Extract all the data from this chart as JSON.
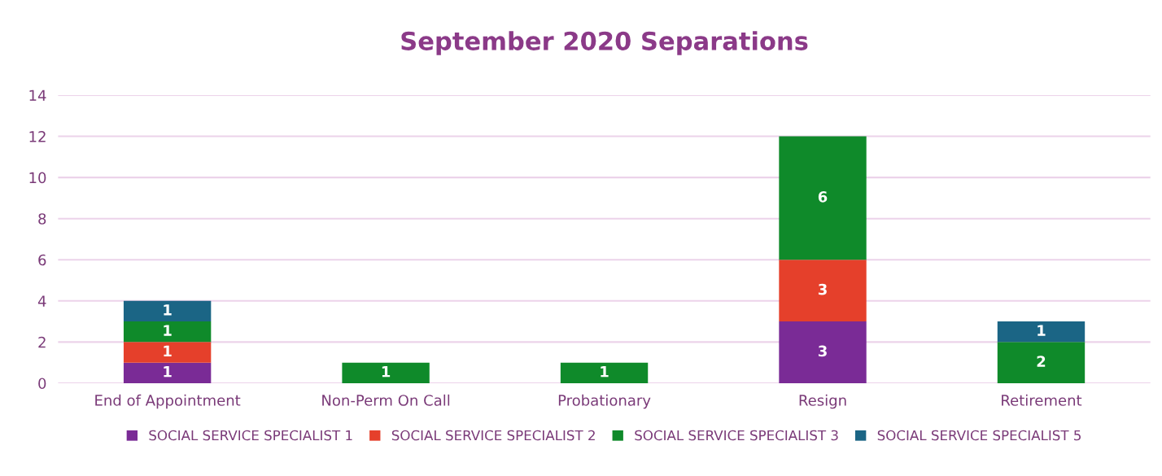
{
  "chart_data": {
    "type": "bar",
    "title": "September 2020 Separations",
    "stacked": true,
    "categories": [
      "End of Appointment",
      "Non-Perm On Call",
      "Probationary",
      "Resign",
      "Retirement"
    ],
    "series": [
      {
        "name": "SOCIAL SERVICE SPECIALIST 1",
        "color": "#7a2b96",
        "values": [
          1,
          null,
          null,
          3,
          null
        ]
      },
      {
        "name": "SOCIAL SERVICE SPECIALIST 2",
        "color": "#e5402b",
        "values": [
          1,
          null,
          null,
          3,
          null
        ]
      },
      {
        "name": "SOCIAL SERVICE SPECIALIST 3",
        "color": "#0f8a2a",
        "values": [
          1,
          1,
          1,
          6,
          2
        ]
      },
      {
        "name": "SOCIAL SERVICE SPECIALIST 5",
        "color": "#1b6585",
        "values": [
          1,
          null,
          null,
          null,
          1
        ]
      }
    ],
    "ylim": [
      0,
      14
    ],
    "yticks": [
      0,
      2,
      4,
      6,
      8,
      10,
      12,
      14
    ],
    "grid": "y",
    "legend": "bottom",
    "data_labels": true
  }
}
